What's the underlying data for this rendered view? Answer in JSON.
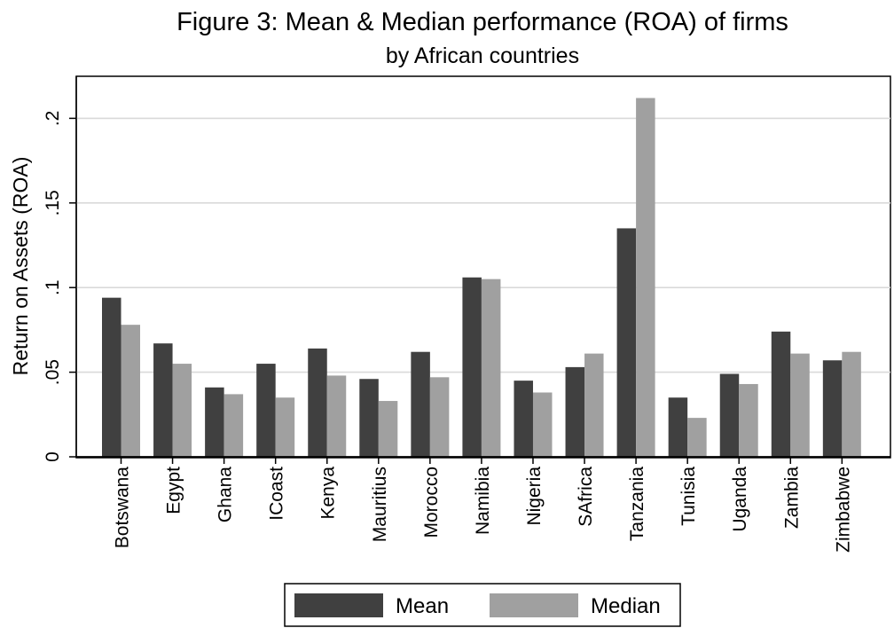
{
  "chart_data": {
    "type": "bar",
    "title": "Figure 3: Mean & Median performance (ROA) of firms",
    "subtitle": "by African countries",
    "xlabel": "",
    "ylabel": "Return on Assets (ROA)",
    "ylim": [
      0,
      0.225
    ],
    "yticks": [
      0,
      0.05,
      0.1,
      0.15,
      0.2
    ],
    "ytick_labels": [
      "0",
      ".05",
      ".1",
      ".15",
      ".2"
    ],
    "grid": true,
    "legend_position": "bottom",
    "categories": [
      "Botswana",
      "Egypt",
      "Ghana",
      "ICoast",
      "Kenya",
      "Mauritius",
      "Morocco",
      "Namibia",
      "Nigeria",
      "SAfrica",
      "Tanzania",
      "Tunisia",
      "Uganda",
      "Zambia",
      "Zimbabwe"
    ],
    "series": [
      {
        "name": "Mean",
        "color": "#404040",
        "values": [
          0.094,
          0.067,
          0.041,
          0.055,
          0.064,
          0.046,
          0.062,
          0.106,
          0.045,
          0.053,
          0.135,
          0.035,
          0.049,
          0.074,
          0.057
        ]
      },
      {
        "name": "Median",
        "color": "#a0a0a0",
        "values": [
          0.078,
          0.055,
          0.037,
          0.035,
          0.048,
          0.033,
          0.047,
          0.105,
          0.038,
          0.061,
          0.212,
          0.023,
          0.043,
          0.061,
          0.062
        ]
      }
    ]
  }
}
